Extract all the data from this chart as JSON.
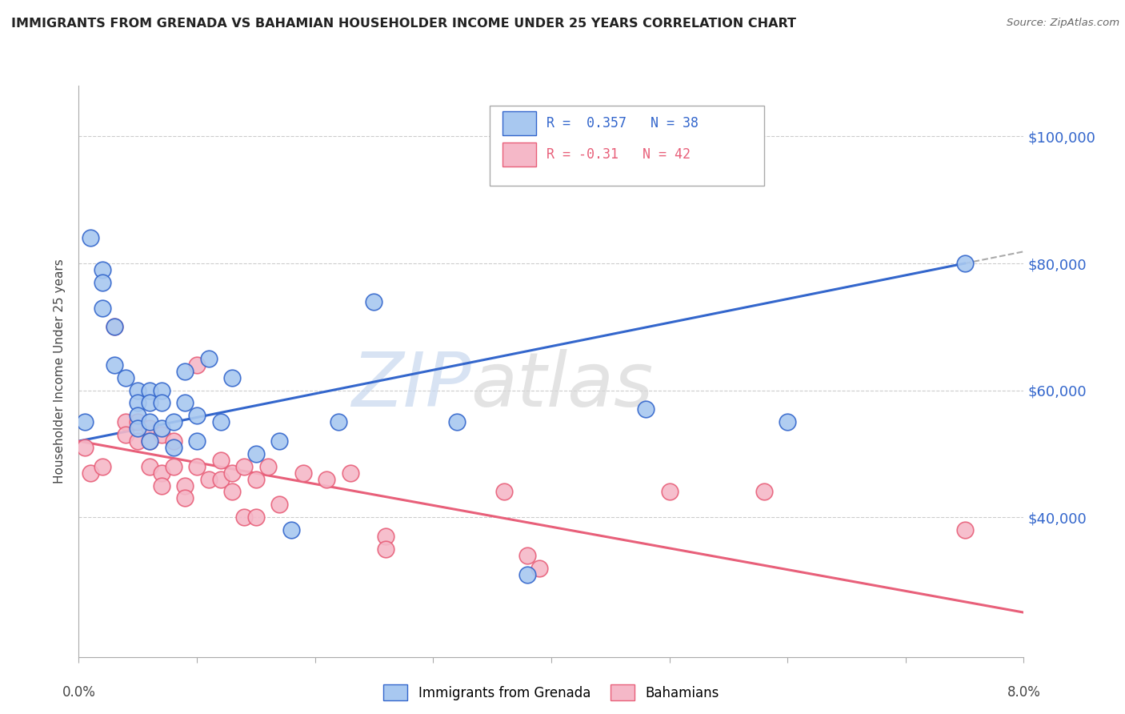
{
  "title": "IMMIGRANTS FROM GRENADA VS BAHAMIAN HOUSEHOLDER INCOME UNDER 25 YEARS CORRELATION CHART",
  "source": "Source: ZipAtlas.com",
  "ylabel": "Householder Income Under 25 years",
  "y_tick_labels": [
    "$100,000",
    "$80,000",
    "$60,000",
    "$40,000"
  ],
  "y_tick_values": [
    100000,
    80000,
    60000,
    40000
  ],
  "xlim": [
    0.0,
    0.08
  ],
  "ylim": [
    18000,
    108000
  ],
  "legend_label1": "Immigrants from Grenada",
  "legend_label2": "Bahamians",
  "R1": 0.357,
  "N1": 38,
  "R2": -0.31,
  "N2": 42,
  "color1": "#A8C8F0",
  "color2": "#F5B8C8",
  "line_color1": "#3366CC",
  "line_color2": "#E8607A",
  "dash_color": "#AAAAAA",
  "watermark_zip": "ZIP",
  "watermark_atlas": "atlas",
  "blue_scatter_x": [
    0.0005,
    0.001,
    0.002,
    0.002,
    0.002,
    0.003,
    0.003,
    0.004,
    0.005,
    0.005,
    0.005,
    0.005,
    0.006,
    0.006,
    0.006,
    0.006,
    0.007,
    0.007,
    0.007,
    0.008,
    0.008,
    0.009,
    0.009,
    0.01,
    0.01,
    0.011,
    0.012,
    0.013,
    0.015,
    0.017,
    0.018,
    0.022,
    0.025,
    0.032,
    0.038,
    0.048,
    0.06,
    0.075
  ],
  "blue_scatter_y": [
    55000,
    84000,
    79000,
    77000,
    73000,
    70000,
    64000,
    62000,
    60000,
    58000,
    56000,
    54000,
    60000,
    58000,
    55000,
    52000,
    60000,
    58000,
    54000,
    55000,
    51000,
    63000,
    58000,
    56000,
    52000,
    65000,
    55000,
    62000,
    50000,
    52000,
    38000,
    55000,
    74000,
    55000,
    31000,
    57000,
    55000,
    80000
  ],
  "pink_scatter_x": [
    0.0005,
    0.001,
    0.002,
    0.003,
    0.004,
    0.004,
    0.005,
    0.005,
    0.006,
    0.006,
    0.006,
    0.007,
    0.007,
    0.007,
    0.008,
    0.008,
    0.009,
    0.009,
    0.01,
    0.01,
    0.011,
    0.012,
    0.012,
    0.013,
    0.013,
    0.014,
    0.014,
    0.015,
    0.015,
    0.016,
    0.017,
    0.019,
    0.021,
    0.023,
    0.026,
    0.026,
    0.036,
    0.038,
    0.039,
    0.05,
    0.058,
    0.075
  ],
  "pink_scatter_y": [
    51000,
    47000,
    48000,
    70000,
    55000,
    53000,
    55000,
    52000,
    54000,
    52000,
    48000,
    53000,
    47000,
    45000,
    52000,
    48000,
    45000,
    43000,
    64000,
    48000,
    46000,
    49000,
    46000,
    47000,
    44000,
    48000,
    40000,
    46000,
    40000,
    48000,
    42000,
    47000,
    46000,
    47000,
    37000,
    35000,
    44000,
    34000,
    32000,
    44000,
    44000,
    38000
  ]
}
